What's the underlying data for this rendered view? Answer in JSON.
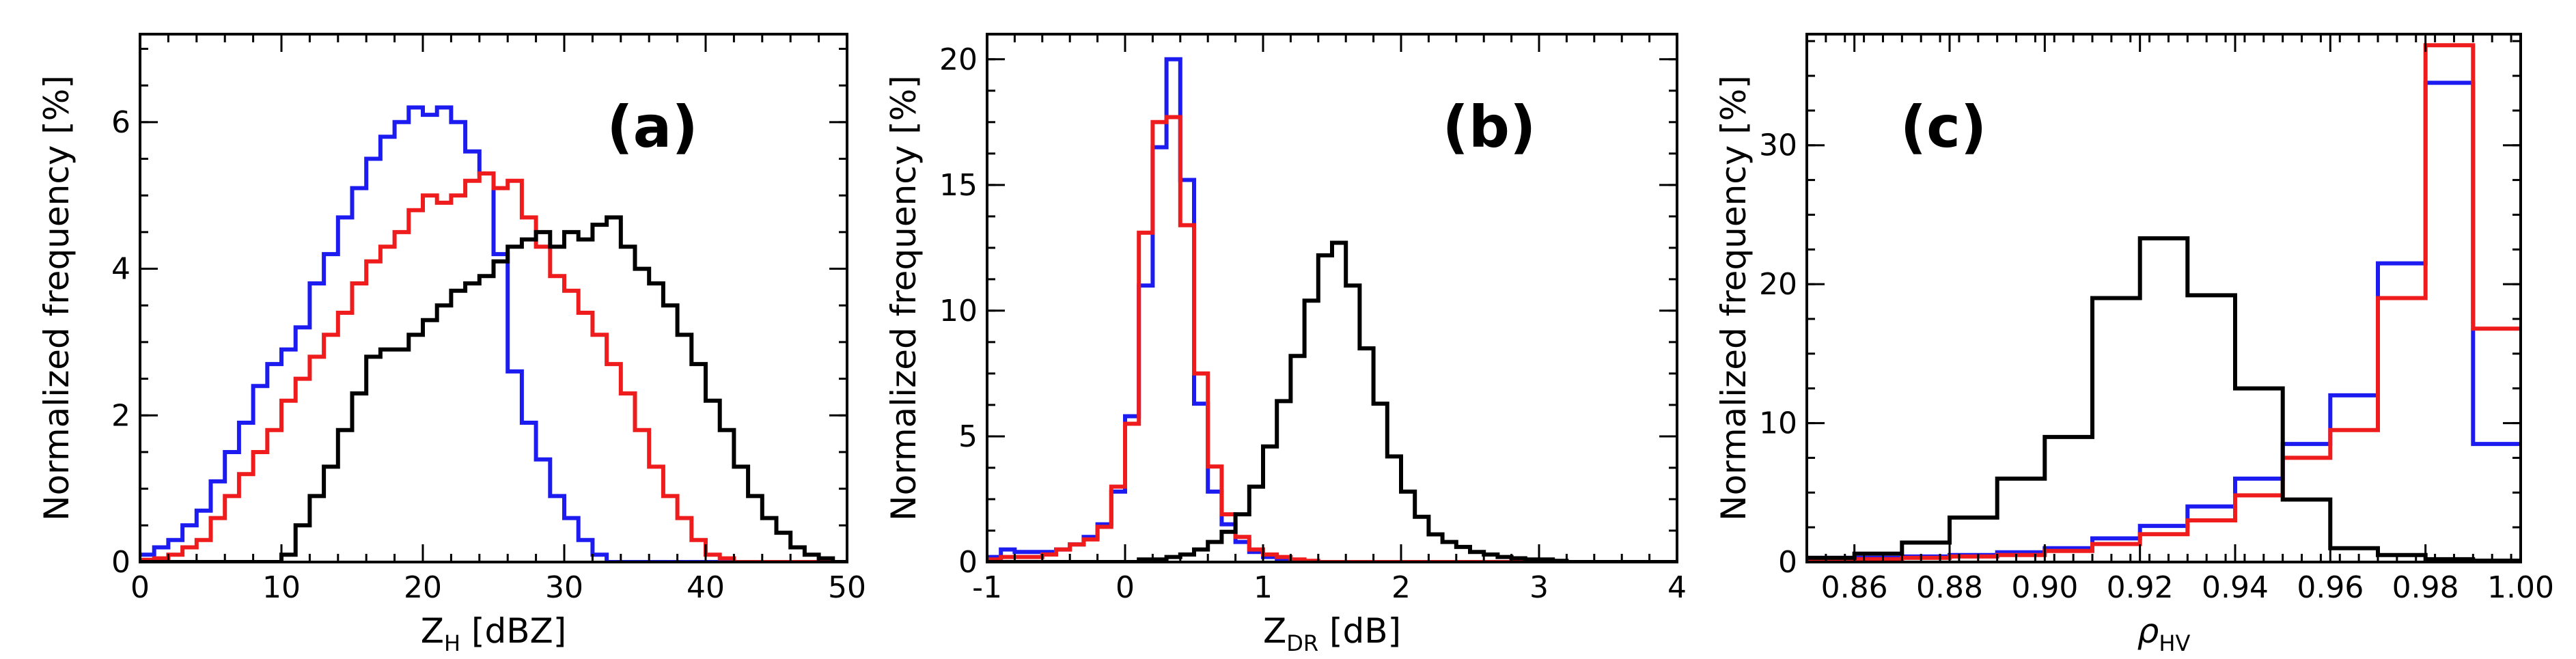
{
  "chart_data": [
    {
      "type": "histogram",
      "panel_label": "(a)",
      "xlabel_main": "Z",
      "xlabel_sub": "H",
      "xlabel_rest": " [dBZ]",
      "ylabel": "Normalized frequency [%]",
      "xlim": [
        0,
        50
      ],
      "ylim": [
        0,
        7.2
      ],
      "xticks": [
        0,
        10,
        20,
        30,
        40,
        50
      ],
      "xtick_labels": [
        "0",
        "10",
        "20",
        "30",
        "40",
        "50"
      ],
      "yticks": [
        0,
        2,
        4,
        6
      ],
      "ytick_labels": [
        "0",
        "2",
        "4",
        "6"
      ],
      "bin_edges": [
        0,
        1,
        2,
        3,
        4,
        5,
        6,
        7,
        8,
        9,
        10,
        11,
        12,
        13,
        14,
        15,
        16,
        17,
        18,
        19,
        20,
        21,
        22,
        23,
        24,
        25,
        26,
        27,
        28,
        29,
        30,
        31,
        32,
        33,
        34,
        35,
        36,
        37,
        38,
        39,
        40,
        41,
        42,
        43,
        44,
        45,
        46,
        47,
        48,
        49,
        50
      ],
      "series": [
        {
          "name": "blue",
          "color": "#1c1cf0",
          "values": [
            0.1,
            0.2,
            0.3,
            0.5,
            0.7,
            1.1,
            1.5,
            1.9,
            2.4,
            2.7,
            2.9,
            3.2,
            3.8,
            4.2,
            4.7,
            5.1,
            5.5,
            5.8,
            6.0,
            6.2,
            6.1,
            6.2,
            6.0,
            5.6,
            5.3,
            4.2,
            2.6,
            1.9,
            1.4,
            0.9,
            0.6,
            0.3,
            0.1,
            0,
            0,
            0,
            0,
            0,
            0,
            0,
            0,
            0,
            0,
            0,
            0,
            0,
            0,
            0,
            0,
            0
          ]
        },
        {
          "name": "red",
          "color": "#ee1c1c",
          "values": [
            0.03,
            0.05,
            0.1,
            0.2,
            0.3,
            0.6,
            0.9,
            1.2,
            1.5,
            1.8,
            2.2,
            2.5,
            2.8,
            3.1,
            3.4,
            3.8,
            4.1,
            4.3,
            4.5,
            4.8,
            5.0,
            4.9,
            5.0,
            5.2,
            5.3,
            5.1,
            5.2,
            4.7,
            4.3,
            3.9,
            3.7,
            3.4,
            3.1,
            2.7,
            2.3,
            1.8,
            1.3,
            0.9,
            0.6,
            0.3,
            0.1,
            0.05,
            0,
            0,
            0,
            0,
            0,
            0,
            0,
            0
          ]
        },
        {
          "name": "black",
          "color": "#000000",
          "values": [
            0,
            0,
            0,
            0,
            0,
            0,
            0,
            0,
            0,
            0,
            0.1,
            0.5,
            0.9,
            1.3,
            1.8,
            2.3,
            2.8,
            2.9,
            2.9,
            3.1,
            3.3,
            3.5,
            3.7,
            3.8,
            3.9,
            4.1,
            4.3,
            4.4,
            4.5,
            4.3,
            4.5,
            4.4,
            4.6,
            4.7,
            4.3,
            4.0,
            3.8,
            3.5,
            3.1,
            2.7,
            2.2,
            1.8,
            1.3,
            0.9,
            0.6,
            0.4,
            0.2,
            0.1,
            0.05,
            0
          ]
        }
      ]
    },
    {
      "type": "histogram",
      "panel_label": "(b)",
      "xlabel_main": "Z",
      "xlabel_sub": "DR",
      "xlabel_rest": " [dB]",
      "ylabel": "Normalized frequency [%]",
      "xlim": [
        -1,
        4
      ],
      "ylim": [
        0,
        21
      ],
      "xticks": [
        -1,
        0,
        1,
        2,
        3,
        4
      ],
      "xtick_labels": [
        "-1",
        "0",
        "1",
        "2",
        "3",
        "4"
      ],
      "yticks": [
        0,
        5,
        10,
        15,
        20
      ],
      "ytick_labels": [
        "0",
        "5",
        "10",
        "15",
        "20"
      ],
      "bin_edges": [
        -1.0,
        -0.9,
        -0.8,
        -0.7,
        -0.6,
        -0.5,
        -0.4,
        -0.3,
        -0.2,
        -0.1,
        0.0,
        0.1,
        0.2,
        0.3,
        0.4,
        0.5,
        0.6,
        0.7,
        0.8,
        0.9,
        1.0,
        1.1,
        1.2,
        1.3,
        1.4,
        1.5,
        1.6,
        1.7,
        1.8,
        1.9,
        2.0,
        2.1,
        2.2,
        2.3,
        2.4,
        2.5,
        2.6,
        2.7,
        2.8,
        2.9,
        3.0,
        3.1,
        3.2,
        3.3,
        3.4,
        3.5,
        3.6,
        3.7,
        3.8,
        3.9,
        4.0
      ],
      "series": [
        {
          "name": "blue",
          "color": "#1c1cf0",
          "values": [
            0.2,
            0.5,
            0.4,
            0.4,
            0.4,
            0.5,
            0.7,
            1.0,
            1.5,
            2.8,
            5.8,
            11.0,
            16.5,
            20.0,
            15.2,
            6.3,
            2.8,
            1.5,
            0.8,
            0.4,
            0.2,
            0.1,
            0.05,
            0,
            0,
            0,
            0,
            0,
            0,
            0,
            0,
            0,
            0,
            0,
            0,
            0,
            0,
            0,
            0,
            0,
            0,
            0,
            0,
            0,
            0,
            0,
            0,
            0,
            0,
            0
          ]
        },
        {
          "name": "red",
          "color": "#ee1c1c",
          "values": [
            0.1,
            0.2,
            0.2,
            0.2,
            0.3,
            0.5,
            0.7,
            0.9,
            1.4,
            3.0,
            5.5,
            13.1,
            17.5,
            17.7,
            13.4,
            7.5,
            3.8,
            1.9,
            1.0,
            0.5,
            0.3,
            0.2,
            0.1,
            0.05,
            0,
            0,
            0,
            0,
            0,
            0,
            0,
            0,
            0,
            0,
            0,
            0,
            0,
            0,
            0,
            0,
            0,
            0,
            0,
            0,
            0,
            0,
            0,
            0,
            0,
            0
          ]
        },
        {
          "name": "black",
          "color": "#000000",
          "values": [
            0,
            0,
            0,
            0,
            0,
            0,
            0,
            0,
            0,
            0,
            0,
            0.1,
            0.1,
            0.2,
            0.3,
            0.5,
            0.8,
            1.2,
            1.9,
            3.0,
            4.6,
            6.4,
            8.2,
            10.4,
            12.2,
            12.7,
            11.0,
            8.5,
            6.3,
            4.2,
            2.8,
            1.8,
            1.1,
            0.8,
            0.6,
            0.4,
            0.3,
            0.2,
            0.15,
            0.1,
            0.1,
            0.05,
            0,
            0,
            0,
            0,
            0,
            0,
            0,
            0
          ]
        }
      ]
    },
    {
      "type": "histogram",
      "panel_label": "(c)",
      "xlabel_main": "ρ",
      "xlabel_sub": "HV",
      "xlabel_rest": "",
      "ylabel": "Normalized frequency [%]",
      "xlim": [
        0.85,
        1.0
      ],
      "ylim": [
        0,
        38
      ],
      "xticks": [
        0.86,
        0.88,
        0.9,
        0.92,
        0.94,
        0.96,
        0.98,
        1.0
      ],
      "xtick_labels": [
        "0.86",
        "0.88",
        "0.90",
        "0.92",
        "0.94",
        "0.96",
        "0.98",
        "1.00"
      ],
      "yticks": [
        0,
        10,
        20,
        30
      ],
      "ytick_labels": [
        "0",
        "10",
        "20",
        "30"
      ],
      "bin_edges": [
        0.85,
        0.86,
        0.87,
        0.88,
        0.89,
        0.9,
        0.91,
        0.92,
        0.93,
        0.94,
        0.95,
        0.96,
        0.97,
        0.98,
        0.99,
        1.0
      ],
      "series": [
        {
          "name": "blue",
          "color": "#1c1cf0",
          "values": [
            0.3,
            0.3,
            0.4,
            0.5,
            0.7,
            1.0,
            1.7,
            2.6,
            4.0,
            6.0,
            8.5,
            12.0,
            21.5,
            34.5,
            8.5
          ]
        },
        {
          "name": "red",
          "color": "#ee1c1c",
          "values": [
            0.2,
            0.2,
            0.3,
            0.4,
            0.5,
            0.8,
            1.3,
            2.0,
            3.0,
            4.8,
            7.5,
            9.5,
            19.0,
            37.2,
            16.8
          ]
        },
        {
          "name": "black",
          "color": "#000000",
          "values": [
            0.3,
            0.6,
            1.4,
            3.2,
            6.0,
            9.0,
            19.0,
            23.3,
            19.2,
            12.5,
            4.5,
            1.0,
            0.5,
            0.2,
            0.1
          ]
        }
      ]
    }
  ]
}
